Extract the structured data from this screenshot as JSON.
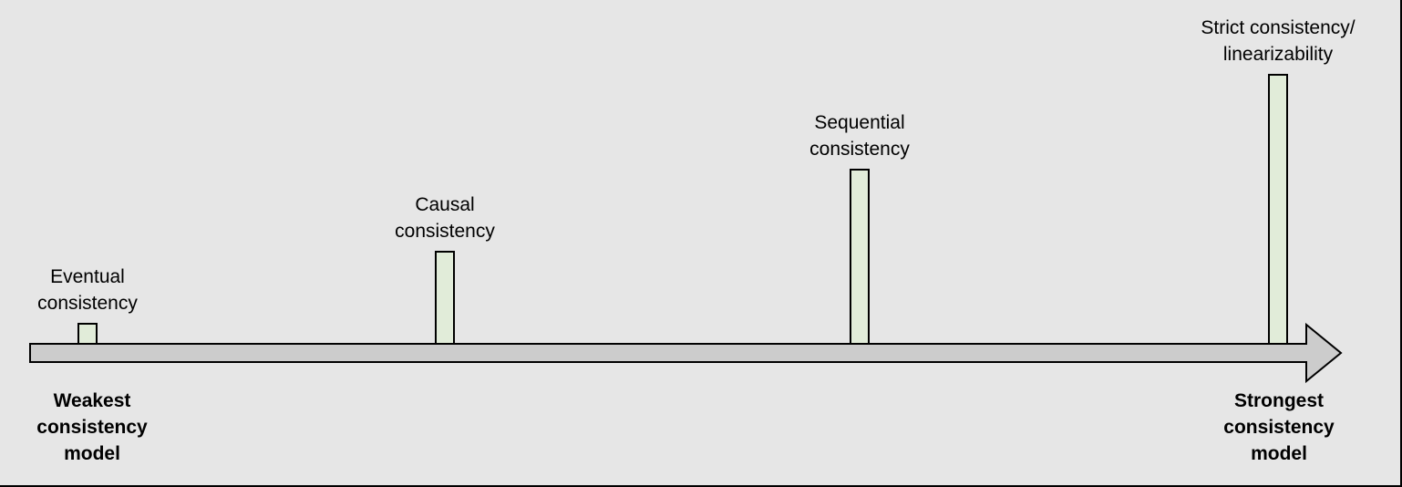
{
  "diagram": {
    "colors": {
      "background": "#e6e6e6",
      "arrow_fill": "#cccccc",
      "bar_fill": "#e1ecd9",
      "stroke": "#000000"
    },
    "axis": {
      "left_label": [
        "Weakest",
        "consistency",
        "model"
      ],
      "right_label": [
        "Strongest",
        "consistency",
        "model"
      ]
    },
    "models": [
      {
        "name": "eventual",
        "label": [
          "Eventual",
          "consistency"
        ],
        "strength": 1
      },
      {
        "name": "causal",
        "label": [
          "Causal",
          "consistency"
        ],
        "strength": 2
      },
      {
        "name": "sequential",
        "label": [
          "Sequential",
          "consistency"
        ],
        "strength": 3
      },
      {
        "name": "strict",
        "label": [
          "Strict consistency/",
          "linearizability"
        ],
        "strength": 4
      }
    ]
  }
}
